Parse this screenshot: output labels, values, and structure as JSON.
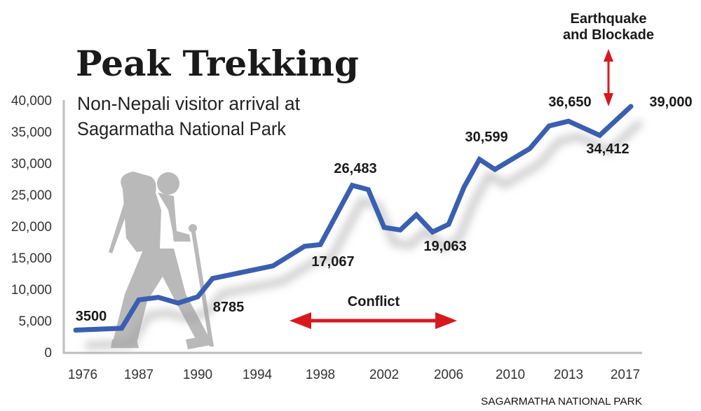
{
  "chart_data": {
    "type": "line",
    "title": "Peak Trekking",
    "subtitle_lines": [
      "Non-Nepali visitor arrival at",
      "Sagarmatha National Park"
    ],
    "source": "SAGARMATHA NATIONAL PARK",
    "xlabel": "",
    "ylabel": "",
    "ylim": [
      0,
      40000
    ],
    "y_ticks": [
      "0",
      "5,000",
      "10,000",
      "15,000",
      "20,000",
      "25,000",
      "30,000",
      "35,000",
      "40,000"
    ],
    "y_tick_values": [
      0,
      5000,
      10000,
      15000,
      20000,
      25000,
      30000,
      35000,
      40000
    ],
    "x_ticks": [
      "1976",
      "1987",
      "1990",
      "1994",
      "1998",
      "2002",
      "2006",
      "2010",
      "2013",
      "2017"
    ],
    "grid": false,
    "line_color": "#3a5fb0",
    "annotation_color": "#d7191f",
    "points": [
      {
        "year": 1976,
        "value": 3500
      },
      {
        "year": 1984,
        "value": 3800
      },
      {
        "year": 1987,
        "value": 8300
      },
      {
        "year": 1988,
        "value": 8700
      },
      {
        "year": 1989,
        "value": 7800
      },
      {
        "year": 1990,
        "value": 8785
      },
      {
        "year": 1991,
        "value": 11700
      },
      {
        "year": 1995,
        "value": 13700
      },
      {
        "year": 1997,
        "value": 16800
      },
      {
        "year": 1998,
        "value": 17067
      },
      {
        "year": 2000,
        "value": 26483
      },
      {
        "year": 2001,
        "value": 25800
      },
      {
        "year": 2002,
        "value": 19800
      },
      {
        "year": 2003,
        "value": 19400
      },
      {
        "year": 2004,
        "value": 21800
      },
      {
        "year": 2005,
        "value": 19063
      },
      {
        "year": 2006,
        "value": 20300
      },
      {
        "year": 2007,
        "value": 26200
      },
      {
        "year": 2008,
        "value": 30599
      },
      {
        "year": 2009,
        "value": 29000
      },
      {
        "year": 2011,
        "value": 32300
      },
      {
        "year": 2012,
        "value": 35900
      },
      {
        "year": 2013,
        "value": 36650
      },
      {
        "year": 2015,
        "value": 34412
      },
      {
        "year": 2017,
        "value": 39000
      }
    ],
    "data_labels": [
      "3500",
      "8785",
      "17,067",
      "26,483",
      "19,063",
      "30,599",
      "36,650",
      "34,412",
      "39,000"
    ],
    "annotations": {
      "conflict": "Conflict",
      "earthquake_lines": [
        "Earthquake",
        "and Blockade"
      ]
    }
  }
}
